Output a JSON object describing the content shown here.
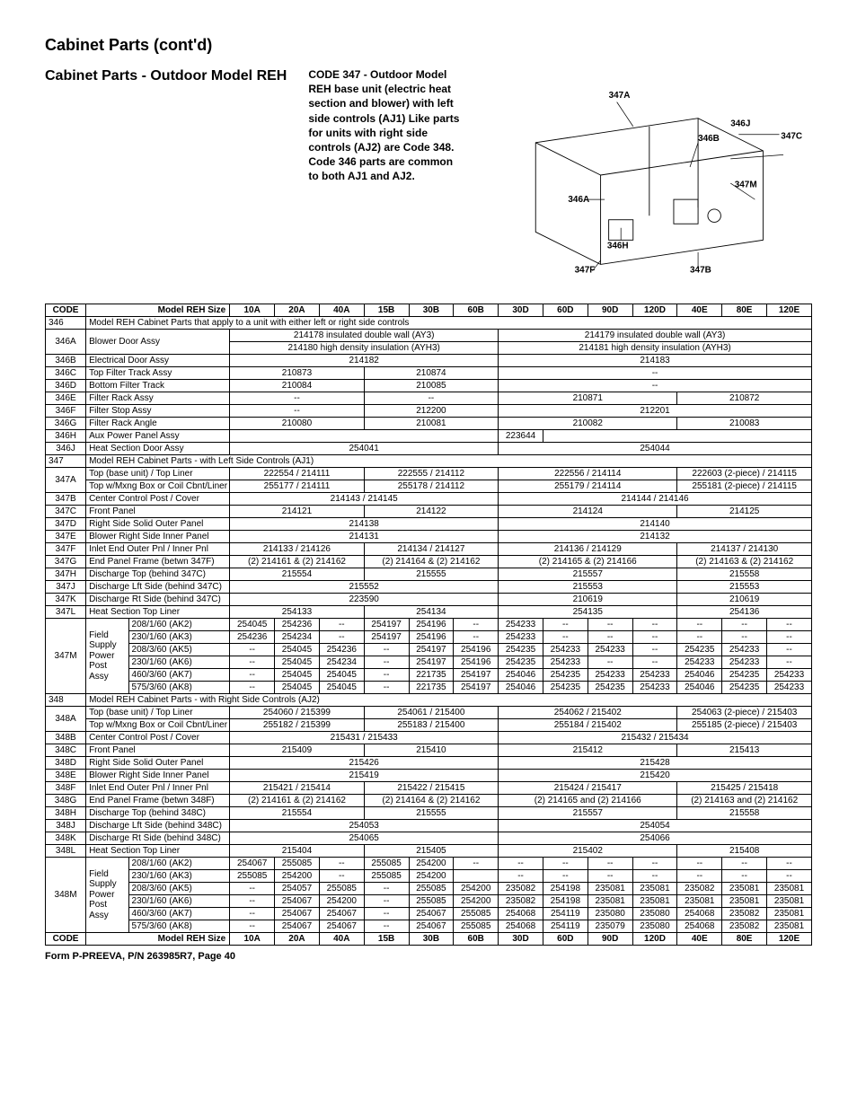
{
  "title": "Cabinet Parts (cont'd)",
  "subhead": "Cabinet Parts - Outdoor Model REH",
  "note": "CODE 347 - Outdoor Model REH base unit (electric heat section and blower) with left side controls (AJ1) Like parts for units with right side controls (AJ2) are Code 348. Code 346 parts are common to both AJ1 and AJ2.",
  "diagram_labels": {
    "a347A": "347A",
    "a346J": "346J",
    "a347C": "347C",
    "a346B": "346B",
    "a347M": "347M",
    "a346A": "346A",
    "a346H": "346H",
    "a347F": "347F",
    "a347B": "347B"
  },
  "columns": [
    "10A",
    "20A",
    "40A",
    "15B",
    "30B",
    "60B",
    "30D",
    "60D",
    "90D",
    "120D",
    "40E",
    "80E",
    "120E"
  ],
  "header_left": "CODE",
  "header_desc": "Model REH Size",
  "sections": {
    "s346": "Model REH Cabinet Parts that apply to a unit with either left or right side controls",
    "s347": "Model REH Cabinet Parts - with Left Side Controls (AJ1)",
    "s348": "Model REH Cabinet Parts - with Right Side Controls (AJ2)"
  },
  "rows346": [
    {
      "code": "346A",
      "desc": "Blower Door Assy",
      "spans": [
        {
          "c": 6,
          "v": "214178 insulated double wall (AY3)"
        },
        {
          "c": 7,
          "v": "214179 insulated double wall (AY3)"
        }
      ],
      "spans2": [
        {
          "c": 6,
          "v": "214180 high density insulation (AYH3)"
        },
        {
          "c": 7,
          "v": "214181 high density insulation (AYH3)"
        }
      ]
    },
    {
      "code": "346B",
      "desc": "Electrical Door Assy",
      "spans": [
        {
          "c": 6,
          "v": "214182"
        },
        {
          "c": 7,
          "v": "214183"
        }
      ]
    },
    {
      "code": "346C",
      "desc": "Top Filter Track Assy",
      "spans": [
        {
          "c": 3,
          "v": "210873"
        },
        {
          "c": 3,
          "v": "210874"
        },
        {
          "c": 7,
          "v": "--"
        }
      ]
    },
    {
      "code": "346D",
      "desc": "Bottom Filter Track",
      "spans": [
        {
          "c": 3,
          "v": "210084"
        },
        {
          "c": 3,
          "v": "210085"
        },
        {
          "c": 7,
          "v": "--"
        }
      ]
    },
    {
      "code": "346E",
      "desc": "Filter Rack Assy",
      "spans": [
        {
          "c": 3,
          "v": "--"
        },
        {
          "c": 3,
          "v": "--"
        },
        {
          "c": 4,
          "v": "210871"
        },
        {
          "c": 3,
          "v": "210872"
        }
      ]
    },
    {
      "code": "346F",
      "desc": "Filter Stop Assy",
      "spans": [
        {
          "c": 3,
          "v": "--"
        },
        {
          "c": 3,
          "v": "212200"
        },
        {
          "c": 7,
          "v": "212201"
        }
      ]
    },
    {
      "code": "346G",
      "desc": "Filter Rack Angle",
      "spans": [
        {
          "c": 3,
          "v": "210080"
        },
        {
          "c": 3,
          "v": "210081"
        },
        {
          "c": 4,
          "v": "210082"
        },
        {
          "c": 3,
          "v": "210083"
        }
      ]
    },
    {
      "code": "346H",
      "desc": "Aux Power Panel Assy",
      "spans": [
        {
          "c": 6,
          "v": ""
        },
        {
          "c": 1,
          "v": "223644"
        },
        {
          "c": 6,
          "v": ""
        }
      ]
    },
    {
      "code": "346J",
      "desc": "Heat Section Door Assy",
      "spans": [
        {
          "c": 6,
          "v": "254041"
        },
        {
          "c": 7,
          "v": "254044"
        }
      ]
    }
  ],
  "rows347": [
    {
      "code": "347A",
      "desc": "Top (base unit) / Top Liner",
      "spans": [
        {
          "c": 3,
          "v": "222554 / 214111"
        },
        {
          "c": 3,
          "v": "222555 / 214112"
        },
        {
          "c": 4,
          "v": "222556 / 214114"
        },
        {
          "c": 3,
          "v": "222603 (2-piece) / 214115"
        }
      ],
      "rs": 2
    },
    {
      "code": "",
      "desc": "Top w/Mxng Box or Coil Cbnt/Liner",
      "spans": [
        {
          "c": 3,
          "v": "255177 / 214111"
        },
        {
          "c": 3,
          "v": "255178 / 214112"
        },
        {
          "c": 4,
          "v": "255179 / 214114"
        },
        {
          "c": 3,
          "v": "255181 (2-piece) / 214115"
        }
      ]
    },
    {
      "code": "347B",
      "desc": "Center Control Post / Cover",
      "spans": [
        {
          "c": 6,
          "v": "214143 / 214145"
        },
        {
          "c": 7,
          "v": "214144 / 214146"
        }
      ]
    },
    {
      "code": "347C",
      "desc": "Front Panel",
      "spans": [
        {
          "c": 3,
          "v": "214121"
        },
        {
          "c": 3,
          "v": "214122"
        },
        {
          "c": 4,
          "v": "214124"
        },
        {
          "c": 3,
          "v": "214125"
        }
      ]
    },
    {
      "code": "347D",
      "desc": "Right Side Solid Outer Panel",
      "spans": [
        {
          "c": 6,
          "v": "214138"
        },
        {
          "c": 7,
          "v": "214140"
        }
      ]
    },
    {
      "code": "347E",
      "desc": "Blower Right Side Inner Panel",
      "spans": [
        {
          "c": 6,
          "v": "214131"
        },
        {
          "c": 7,
          "v": "214132"
        }
      ]
    },
    {
      "code": "347F",
      "desc": "Inlet End Outer Pnl / Inner Pnl",
      "spans": [
        {
          "c": 3,
          "v": "214133 / 214126"
        },
        {
          "c": 3,
          "v": "214134 / 214127"
        },
        {
          "c": 4,
          "v": "214136 / 214129"
        },
        {
          "c": 3,
          "v": "214137 / 214130"
        }
      ]
    },
    {
      "code": "347G",
      "desc": "End Panel Frame (betwn 347F)",
      "spans": [
        {
          "c": 3,
          "v": "(2) 214161 & (2) 214162"
        },
        {
          "c": 3,
          "v": "(2) 214164 & (2) 214162"
        },
        {
          "c": 4,
          "v": "(2) 214165 & (2) 214166"
        },
        {
          "c": 3,
          "v": "(2) 214163 & (2) 214162"
        }
      ]
    },
    {
      "code": "347H",
      "desc": "Discharge Top (behind 347C)",
      "spans": [
        {
          "c": 3,
          "v": "215554"
        },
        {
          "c": 3,
          "v": "215555"
        },
        {
          "c": 4,
          "v": "215557"
        },
        {
          "c": 3,
          "v": "215558"
        }
      ]
    },
    {
      "code": "347J",
      "desc": "Discharge Lft Side (behind 347C)",
      "spans": [
        {
          "c": 6,
          "v": "215552"
        },
        {
          "c": 4,
          "v": "215553"
        },
        {
          "c": 3,
          "v": "215553"
        }
      ]
    },
    {
      "code": "347K",
      "desc": "Discharge Rt Side (behind 347C)",
      "spans": [
        {
          "c": 6,
          "v": "223590"
        },
        {
          "c": 4,
          "v": "210619"
        },
        {
          "c": 3,
          "v": "210619"
        }
      ]
    },
    {
      "code": "347L",
      "desc": "Heat Section Top Liner",
      "spans": [
        {
          "c": 3,
          "v": "254133"
        },
        {
          "c": 3,
          "v": "254134"
        },
        {
          "c": 4,
          "v": "254135"
        },
        {
          "c": 3,
          "v": "254136"
        }
      ]
    }
  ],
  "rows347M": {
    "code": "347M",
    "desc1": "Field Supply Power Post Assy",
    "lines": [
      {
        "l": "208/1/60 (AK2)",
        "v": [
          "254045",
          "254236",
          "--",
          "254197",
          "254196",
          "--",
          "254233",
          "--",
          "--",
          "--",
          "--",
          "--",
          "--"
        ]
      },
      {
        "l": "230/1/60 (AK3)",
        "v": [
          "254236",
          "254234",
          "--",
          "254197",
          "254196",
          "--",
          "254233",
          "--",
          "--",
          "--",
          "--",
          "--",
          "--"
        ]
      },
      {
        "l": "208/3/60 (AK5)",
        "v": [
          "--",
          "254045",
          "254236",
          "--",
          "254197",
          "254196",
          "254235",
          "254233",
          "254233",
          "--",
          "254235",
          "254233",
          "--"
        ]
      },
      {
        "l": "230/1/60 (AK6)",
        "v": [
          "--",
          "254045",
          "254234",
          "--",
          "254197",
          "254196",
          "254235",
          "254233",
          "--",
          "--",
          "254233",
          "254233",
          "--"
        ]
      },
      {
        "l": "460/3/60 (AK7)",
        "v": [
          "--",
          "254045",
          "254045",
          "--",
          "221735",
          "254197",
          "254046",
          "254235",
          "254233",
          "254233",
          "254046",
          "254235",
          "254233"
        ]
      },
      {
        "l": "575/3/60 (AK8)",
        "v": [
          "--",
          "254045",
          "254045",
          "--",
          "221735",
          "254197",
          "254046",
          "254235",
          "254235",
          "254233",
          "254046",
          "254235",
          "254233"
        ]
      }
    ]
  },
  "rows348": [
    {
      "code": "348A",
      "desc": "Top (base unit) / Top Liner",
      "spans": [
        {
          "c": 3,
          "v": "254060 / 215399"
        },
        {
          "c": 3,
          "v": "254061 / 215400"
        },
        {
          "c": 4,
          "v": "254062 / 215402"
        },
        {
          "c": 3,
          "v": "254063 (2-piece) / 215403"
        }
      ],
      "rs": 2
    },
    {
      "code": "",
      "desc": "Top w/Mxng Box or Coil Cbnt/Liner",
      "spans": [
        {
          "c": 3,
          "v": "255182 / 215399"
        },
        {
          "c": 3,
          "v": "255183 / 215400"
        },
        {
          "c": 4,
          "v": "255184 / 215402"
        },
        {
          "c": 3,
          "v": "255185 (2-piece) / 215403"
        }
      ]
    },
    {
      "code": "348B",
      "desc": "Center Control Post / Cover",
      "spans": [
        {
          "c": 6,
          "v": "215431 / 215433"
        },
        {
          "c": 7,
          "v": "215432 / 215434"
        }
      ]
    },
    {
      "code": "348C",
      "desc": "Front Panel",
      "spans": [
        {
          "c": 3,
          "v": "215409"
        },
        {
          "c": 3,
          "v": "215410"
        },
        {
          "c": 4,
          "v": "215412"
        },
        {
          "c": 3,
          "v": "215413"
        }
      ]
    },
    {
      "code": "348D",
      "desc": "Right Side Solid Outer Panel",
      "spans": [
        {
          "c": 6,
          "v": "215426"
        },
        {
          "c": 7,
          "v": "215428"
        }
      ]
    },
    {
      "code": "348E",
      "desc": "Blower Right Side Inner Panel",
      "spans": [
        {
          "c": 6,
          "v": "215419"
        },
        {
          "c": 7,
          "v": "215420"
        }
      ]
    },
    {
      "code": "348F",
      "desc": "Inlet End Outer Pnl / Inner Pnl",
      "spans": [
        {
          "c": 3,
          "v": "215421 / 215414"
        },
        {
          "c": 3,
          "v": "215422 / 215415"
        },
        {
          "c": 4,
          "v": "215424 / 215417"
        },
        {
          "c": 3,
          "v": "215425 / 215418"
        }
      ]
    },
    {
      "code": "348G",
      "desc": "End Panel Frame (betwn 348F)",
      "spans": [
        {
          "c": 3,
          "v": "(2) 214161 & (2) 214162"
        },
        {
          "c": 3,
          "v": "(2) 214164 & (2) 214162"
        },
        {
          "c": 4,
          "v": "(2) 214165 and (2) 214166"
        },
        {
          "c": 3,
          "v": "(2) 214163 and (2) 214162"
        }
      ]
    },
    {
      "code": "348H",
      "desc": "Discharge Top (behind 348C)",
      "spans": [
        {
          "c": 3,
          "v": "215554"
        },
        {
          "c": 3,
          "v": "215555"
        },
        {
          "c": 4,
          "v": "215557"
        },
        {
          "c": 3,
          "v": "215558"
        }
      ]
    },
    {
      "code": "348J",
      "desc": "Discharge Lft Side (behind 348C)",
      "spans": [
        {
          "c": 6,
          "v": "254053"
        },
        {
          "c": 7,
          "v": "254054"
        }
      ]
    },
    {
      "code": "348K",
      "desc": "Discharge Rt Side (behind 348C)",
      "spans": [
        {
          "c": 6,
          "v": "254065"
        },
        {
          "c": 7,
          "v": "254066"
        }
      ]
    },
    {
      "code": "348L",
      "desc": "Heat Section Top Liner",
      "spans": [
        {
          "c": 3,
          "v": "215404"
        },
        {
          "c": 3,
          "v": "215405"
        },
        {
          "c": 4,
          "v": "215402"
        },
        {
          "c": 3,
          "v": "215408"
        }
      ]
    }
  ],
  "rows348M": {
    "code": "348M",
    "desc1": "Field Supply Power Post Assy",
    "lines": [
      {
        "l": "208/1/60 (AK2)",
        "v": [
          "254067",
          "255085",
          "--",
          "255085",
          "254200",
          "--",
          "--",
          "--",
          "--",
          "--",
          "--",
          "--",
          "--"
        ]
      },
      {
        "l": "230/1/60 (AK3)",
        "v": [
          "255085",
          "254200",
          "--",
          "255085",
          "254200",
          "",
          "--",
          "--",
          "--",
          "--",
          "--",
          "--",
          "--"
        ]
      },
      {
        "l": "208/3/60 (AK5)",
        "v": [
          "--",
          "254057",
          "255085",
          "--",
          "255085",
          "254200",
          "235082",
          "254198",
          "235081",
          "235081",
          "235082",
          "235081",
          "235081"
        ]
      },
      {
        "l": "230/1/60 (AK6)",
        "v": [
          "--",
          "254067",
          "254200",
          "--",
          "255085",
          "254200",
          "235082",
          "254198",
          "235081",
          "235081",
          "235081",
          "235081",
          "235081"
        ]
      },
      {
        "l": "460/3/60 (AK7)",
        "v": [
          "--",
          "254067",
          "254067",
          "--",
          "254067",
          "255085",
          "254068",
          "254119",
          "235080",
          "235080",
          "254068",
          "235082",
          "235081"
        ]
      },
      {
        "l": "575/3/60 (AK8)",
        "v": [
          "--",
          "254067",
          "254067",
          "--",
          "254067",
          "255085",
          "254068",
          "254119",
          "235079",
          "235080",
          "254068",
          "235082",
          "235081"
        ]
      }
    ]
  },
  "footer": "Form P-PREEVA, P/N 263985R7, Page 40"
}
